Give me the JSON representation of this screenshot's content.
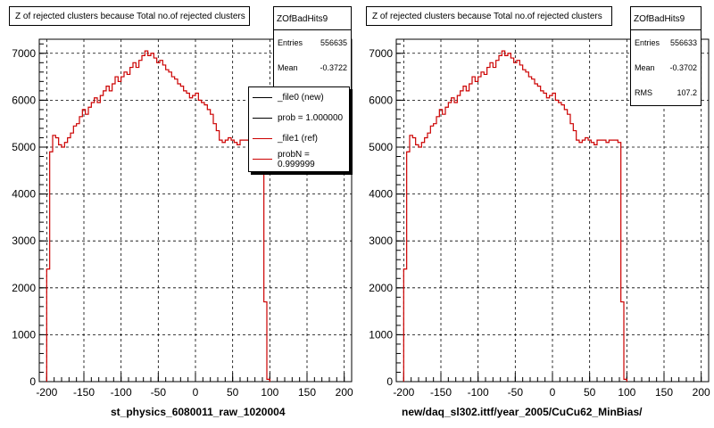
{
  "colors": {
    "hist": "#cc0000",
    "axis": "#000000",
    "grid": "#000000",
    "legend_new": "#000000",
    "legend_ref": "#cc0000"
  },
  "pads": [
    {
      "title": "Z of rejected clusters  because Total no.of rejected clusters",
      "stats": {
        "name": "ZOfBadHits9",
        "entries_label": "Entries",
        "entries": "556635",
        "mean_label": "Mean",
        "mean": "-0.3722"
      },
      "legend": [
        {
          "label": "_file0 (new)",
          "color": "#000000"
        },
        {
          "label": "prob = 1.000000",
          "color": "#000000"
        },
        {
          "label": "_file1 (ref)",
          "color": "#cc0000"
        },
        {
          "label": "probN = 0.999999",
          "color": "#cc0000"
        }
      ],
      "xlabel": "st_physics_6080011_raw_1020004"
    },
    {
      "title": "Z of rejected clusters  because Total no.of rejected clusters",
      "stats": {
        "name": "ZOfBadHits9",
        "entries_label": "Entries",
        "entries": "556633",
        "mean_label": "Mean",
        "mean": "-0.3702",
        "rms_label": "RMS",
        "rms": "107.2"
      },
      "xlabel": "new/daq_sl302.ittf/year_2005/CuCu62_MinBias/"
    }
  ],
  "chart_data": [
    {
      "type": "histogram",
      "title": "Z of rejected clusters  because Total no.of rejected clusters",
      "xlabel": "st_physics_6080011_raw_1020004",
      "ylabel": "",
      "xlim": [
        -210,
        210
      ],
      "ylim": [
        0,
        7300
      ],
      "xticks": [
        -200,
        -150,
        -100,
        -50,
        0,
        50,
        100,
        150,
        200
      ],
      "yticks": [
        0,
        1000,
        2000,
        3000,
        4000,
        5000,
        6000,
        7000
      ],
      "grid": true,
      "bin_edges_start": -200,
      "bin_width": 4,
      "series": [
        {
          "name": "",
          "values": [
            2400,
            4900,
            5250,
            5200,
            5050,
            5000,
            5100,
            5200,
            5300,
            5450,
            5500,
            5650,
            5800,
            5700,
            5850,
            5950,
            6050,
            5950,
            6100,
            6200,
            6300,
            6200,
            6350,
            6500,
            6400,
            6500,
            6600,
            6550,
            6700,
            6800,
            6700,
            6850,
            6950,
            7050,
            6950,
            7000,
            6900,
            6800,
            6850,
            6750,
            6650,
            6600,
            6500,
            6450,
            6350,
            6300,
            6200,
            6150,
            6050,
            6100,
            6150,
            6000,
            5950,
            5900,
            5800,
            5700,
            5500,
            5350,
            5150,
            5100,
            5150,
            5200,
            5150,
            5100,
            5050,
            5150,
            5150,
            5150,
            5100,
            5150,
            5150,
            5150,
            5100,
            1700,
            50
          ]
        }
      ]
    },
    {
      "type": "histogram",
      "title": "Z of rejected clusters  because Total no.of rejected clusters",
      "xlabel": "new/daq_sl302.ittf/year_2005/CuCu62_MinBias/",
      "ylabel": "",
      "xlim": [
        -210,
        210
      ],
      "ylim": [
        0,
        7300
      ],
      "xticks": [
        -200,
        -150,
        -100,
        -50,
        0,
        50,
        100,
        150,
        200
      ],
      "yticks": [
        0,
        1000,
        2000,
        3000,
        4000,
        5000,
        6000,
        7000
      ],
      "grid": true,
      "bin_edges_start": -200,
      "bin_width": 4,
      "series": [
        {
          "name": "",
          "values": [
            2400,
            4900,
            5250,
            5200,
            5050,
            5000,
            5100,
            5200,
            5300,
            5450,
            5500,
            5650,
            5800,
            5700,
            5850,
            5950,
            6050,
            5950,
            6100,
            6200,
            6300,
            6200,
            6350,
            6500,
            6400,
            6500,
            6600,
            6550,
            6700,
            6800,
            6700,
            6850,
            6950,
            7050,
            6950,
            7000,
            6900,
            6800,
            6850,
            6750,
            6650,
            6600,
            6500,
            6450,
            6350,
            6300,
            6200,
            6150,
            6050,
            6100,
            6150,
            6000,
            5950,
            5900,
            5800,
            5700,
            5500,
            5350,
            5150,
            5100,
            5150,
            5200,
            5150,
            5100,
            5050,
            5150,
            5150,
            5150,
            5100,
            5150,
            5150,
            5150,
            5100,
            1700,
            50
          ]
        }
      ]
    }
  ]
}
